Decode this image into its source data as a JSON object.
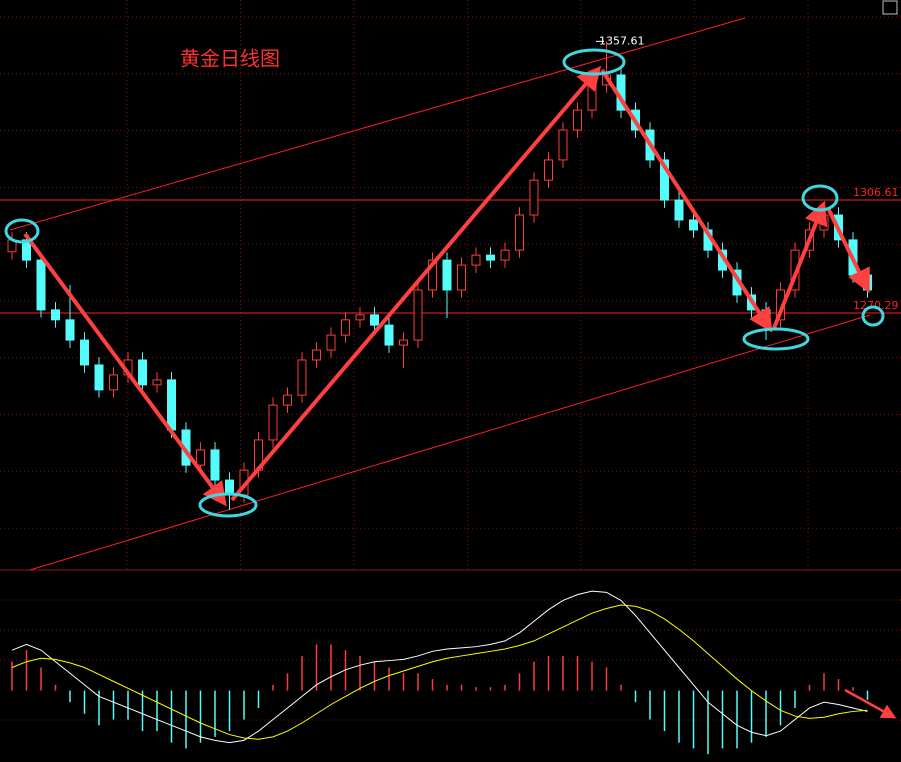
{
  "chart_data": [
    {
      "type": "candlestick",
      "title": "黄金日线图",
      "open": [
        1290.0,
        1293.8,
        1287.3,
        1271.3,
        1268.1,
        1261.6,
        1253.6,
        1245.6,
        1250.4,
        1255.2,
        1247.2,
        1248.8,
        1232.7,
        1221.4,
        1226.3,
        1216.6,
        1211.8,
        1219.8,
        1229.5,
        1240.7,
        1243.9,
        1255.2,
        1258.4,
        1263.2,
        1268.1,
        1269.7,
        1266.4,
        1260.0,
        1261.6,
        1277.7,
        1287.3,
        1277.7,
        1285.7,
        1288.9,
        1287.3,
        1290.5,
        1301.8,
        1313.0,
        1319.5,
        1329.1,
        1335.5,
        1343.6,
        1346.8,
        1335.5,
        1329.1,
        1319.5,
        1306.6,
        1300.2,
        1297.0,
        1290.5,
        1284.1,
        1276.1,
        1271.3,
        1268.1,
        1277.7,
        1290.5,
        1297.0,
        1301.8,
        1293.8,
        1282.5
      ],
      "high": [
        1296.3,
        1296.3,
        1289.8,
        1273.8,
        1279.3,
        1264.1,
        1256.1,
        1252.9,
        1257.7,
        1257.7,
        1251.3,
        1251.3,
        1235.2,
        1228.8,
        1228.8,
        1219.1,
        1222.3,
        1232.0,
        1243.2,
        1246.4,
        1257.7,
        1260.9,
        1265.7,
        1270.6,
        1272.2,
        1272.2,
        1268.9,
        1264.1,
        1280.2,
        1289.8,
        1289.8,
        1288.2,
        1291.4,
        1291.4,
        1293.0,
        1304.3,
        1315.5,
        1322.0,
        1331.6,
        1338.0,
        1346.1,
        1357.6,
        1349.3,
        1338.0,
        1331.6,
        1322.0,
        1309.1,
        1302.7,
        1299.5,
        1293.0,
        1286.6,
        1278.6,
        1273.8,
        1280.2,
        1293.0,
        1299.5,
        1305.0,
        1304.3,
        1296.3,
        1285.0
      ],
      "low": [
        1287.5,
        1284.8,
        1268.8,
        1265.6,
        1259.1,
        1251.1,
        1243.1,
        1243.1,
        1247.9,
        1244.7,
        1244.7,
        1230.2,
        1218.9,
        1218.9,
        1214.1,
        1207.0,
        1209.3,
        1217.3,
        1227.0,
        1238.2,
        1241.4,
        1252.7,
        1255.9,
        1260.7,
        1265.6,
        1263.9,
        1257.5,
        1252.6,
        1259.1,
        1275.2,
        1268.7,
        1275.2,
        1283.2,
        1284.8,
        1284.8,
        1288.0,
        1299.3,
        1310.5,
        1317.0,
        1326.6,
        1333.0,
        1341.1,
        1333.0,
        1326.6,
        1317.0,
        1304.1,
        1297.7,
        1294.5,
        1288.0,
        1281.6,
        1273.6,
        1268.8,
        1261.6,
        1265.6,
        1275.2,
        1288.0,
        1294.5,
        1291.3,
        1280.0,
        1275.2
      ],
      "close": [
        1293.8,
        1287.3,
        1271.3,
        1268.1,
        1261.6,
        1253.6,
        1245.6,
        1250.4,
        1255.2,
        1247.2,
        1248.8,
        1232.7,
        1221.4,
        1226.3,
        1216.6,
        1211.8,
        1219.8,
        1229.5,
        1240.7,
        1243.9,
        1255.2,
        1258.4,
        1263.2,
        1268.1,
        1269.7,
        1266.4,
        1260.0,
        1261.6,
        1277.7,
        1287.3,
        1277.7,
        1285.7,
        1288.9,
        1287.3,
        1290.5,
        1301.8,
        1313.0,
        1319.5,
        1329.1,
        1335.5,
        1343.6,
        1346.8,
        1335.5,
        1329.1,
        1319.5,
        1306.6,
        1300.2,
        1297.0,
        1290.5,
        1284.1,
        1276.1,
        1271.3,
        1268.1,
        1277.7,
        1290.5,
        1297.0,
        1301.8,
        1293.8,
        1282.5,
        1277.7
      ],
      "up_color": "#ff3c3c",
      "down_color": "#54fcfc",
      "ylim": [
        1187.7,
        1370.9
      ],
      "levels": [
        1306.61,
        1270.29
      ],
      "level_color": "#ff2020",
      "high_label": 1357.61
    },
    {
      "type": "macd",
      "histogram": [
        2.5,
        3.5,
        2.0,
        0.5,
        -1.0,
        -2.0,
        -3.0,
        -2.5,
        -2.5,
        -3.5,
        -3.5,
        -4.5,
        -5.0,
        -4.5,
        -4.0,
        -3.5,
        -2.5,
        -1.5,
        0.5,
        1.5,
        3.0,
        4.0,
        4.0,
        3.5,
        3.0,
        2.5,
        2.0,
        1.5,
        1.5,
        1.0,
        0.5,
        0.5,
        0.3,
        0.3,
        0.5,
        1.5,
        2.5,
        3.0,
        3.0,
        3.0,
        2.5,
        2.0,
        0.5,
        -1.0,
        -2.5,
        -3.5,
        -4.5,
        -5.0,
        -5.5,
        -5.0,
        -5.0,
        -4.5,
        -4.0,
        -3.0,
        -1.5,
        0.5,
        1.5,
        1.0,
        0.3,
        -0.8
      ],
      "pos_color": "#ff3c3c",
      "neg_color": "#54fcfc",
      "lines": [
        {
          "color": "#ffffff",
          "values": [
            3.5,
            4.0,
            3.5,
            2.5,
            1.5,
            0.5,
            -0.5,
            -1.0,
            -1.5,
            -2.0,
            -2.5,
            -3.0,
            -3.5,
            -4.0,
            -4.3,
            -4.5,
            -4.3,
            -3.5,
            -2.5,
            -1.5,
            -0.5,
            0.5,
            1.2,
            1.8,
            2.2,
            2.5,
            2.6,
            2.7,
            3.0,
            3.4,
            3.6,
            3.7,
            3.8,
            4.0,
            4.3,
            5.0,
            6.0,
            7.0,
            7.8,
            8.3,
            8.6,
            8.5,
            7.8,
            6.5,
            5.0,
            3.5,
            2.0,
            0.5,
            -1.0,
            -2.0,
            -3.0,
            -3.6,
            -3.9,
            -3.5,
            -2.5,
            -1.5,
            -1.0,
            -1.2,
            -1.5,
            -1.8
          ]
        },
        {
          "color": "#ffff00",
          "values": [
            2.0,
            2.5,
            2.8,
            2.7,
            2.4,
            2.0,
            1.4,
            0.8,
            0.2,
            -0.4,
            -1.0,
            -1.6,
            -2.2,
            -2.8,
            -3.3,
            -3.8,
            -4.1,
            -4.2,
            -4.0,
            -3.5,
            -2.8,
            -2.0,
            -1.2,
            -0.5,
            0.2,
            0.8,
            1.3,
            1.7,
            2.1,
            2.5,
            2.8,
            3.0,
            3.2,
            3.4,
            3.6,
            3.9,
            4.3,
            4.9,
            5.5,
            6.1,
            6.7,
            7.1,
            7.4,
            7.3,
            6.9,
            6.2,
            5.3,
            4.3,
            3.2,
            2.1,
            1.0,
            0.0,
            -0.9,
            -1.7,
            -2.2,
            -2.4,
            -2.3,
            -2.0,
            -1.8,
            -1.7
          ]
        }
      ],
      "ylim": [
        -6,
        10
      ]
    }
  ]
}
